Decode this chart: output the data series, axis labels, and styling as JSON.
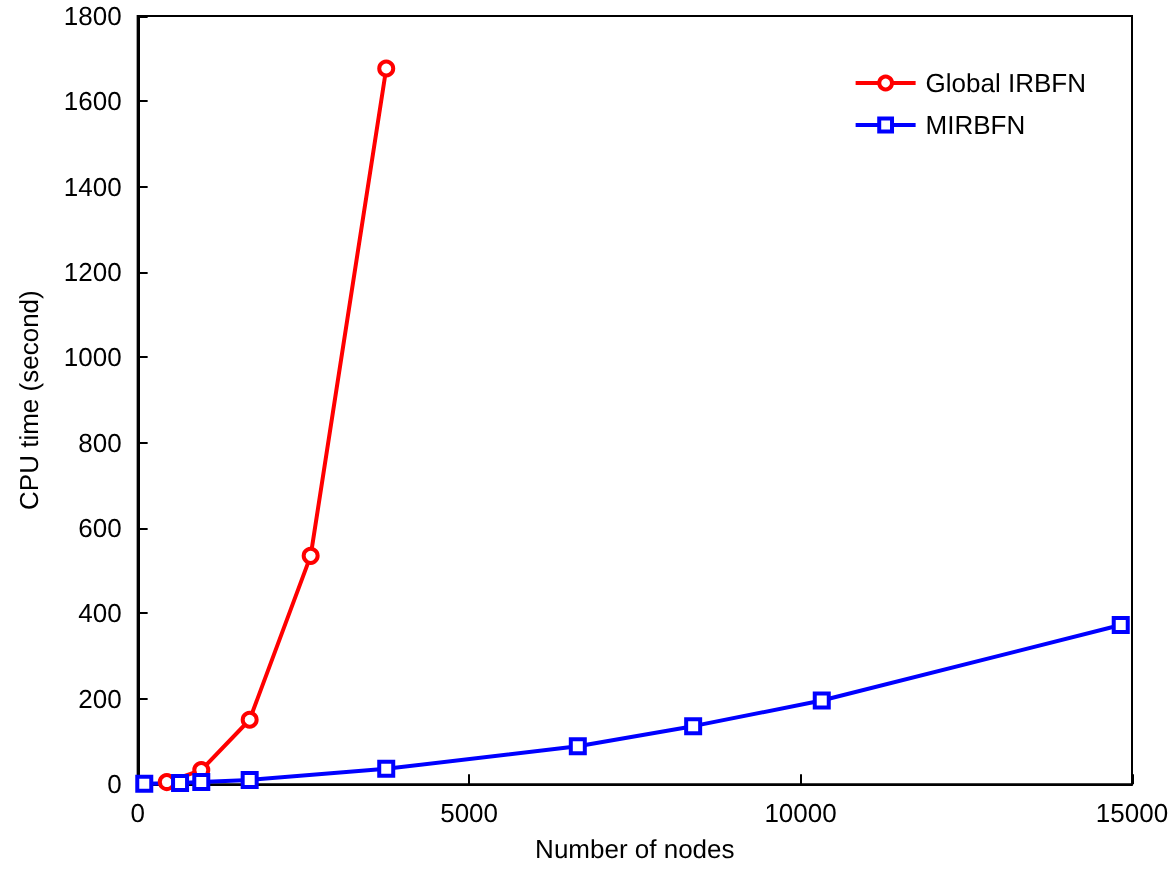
{
  "chart_data": {
    "type": "line",
    "xlabel": "Number of nodes",
    "ylabel": "CPU time (second)",
    "xlim": [
      0,
      15000
    ],
    "xticks": [
      0,
      5000,
      10000,
      15000
    ],
    "ylim": [
      0,
      1800
    ],
    "yticks": [
      0,
      200,
      400,
      600,
      800,
      1000,
      1200,
      1400,
      1600,
      1800
    ],
    "grid": false,
    "legend": "top right",
    "series": [
      {
        "name": "Global IRBFN",
        "color": "#ff0000",
        "marker": "circle",
        "x": [
          440,
          960,
          1690,
          2610,
          3750
        ],
        "values": [
          5,
          33,
          151,
          535,
          1677
        ]
      },
      {
        "name": "MIRBFN",
        "color": "#0000ff",
        "marker": "square",
        "x": [
          100,
          640,
          960,
          1690,
          3750,
          6640,
          8380,
          10320,
          14830
        ],
        "values": [
          1,
          3,
          5,
          10,
          36,
          89,
          136,
          196,
          373
        ]
      }
    ]
  }
}
